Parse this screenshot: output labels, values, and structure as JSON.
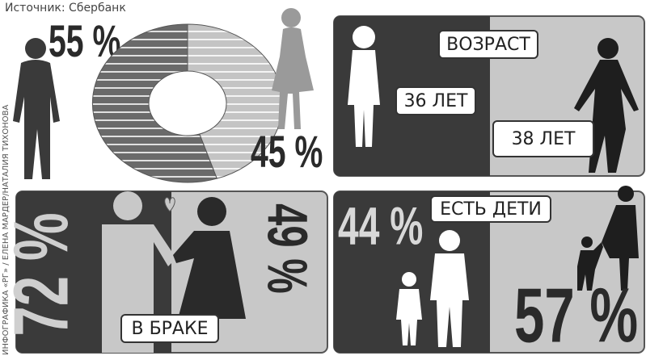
{
  "source": "Источник: Сбербанк",
  "credit": "ИНФОГРАФИКА «РГ» / ЕЛЕНА МАРДЕР/НАТАЛИЯ ТИХОНОВА",
  "gender": {
    "men": {
      "value": 55,
      "label": "55 %"
    },
    "women": {
      "value": 45,
      "label": "45 %"
    }
  },
  "age": {
    "title": "ВОЗРАСТ",
    "men": "36 ЛЕТ",
    "women": "38 ЛЕТ"
  },
  "married": {
    "title": "В БРАКЕ",
    "men": "72 %",
    "women": "49 %"
  },
  "children": {
    "title": "ЕСТЬ ДЕТИ",
    "men": "44 %",
    "women": "57 %"
  }
}
